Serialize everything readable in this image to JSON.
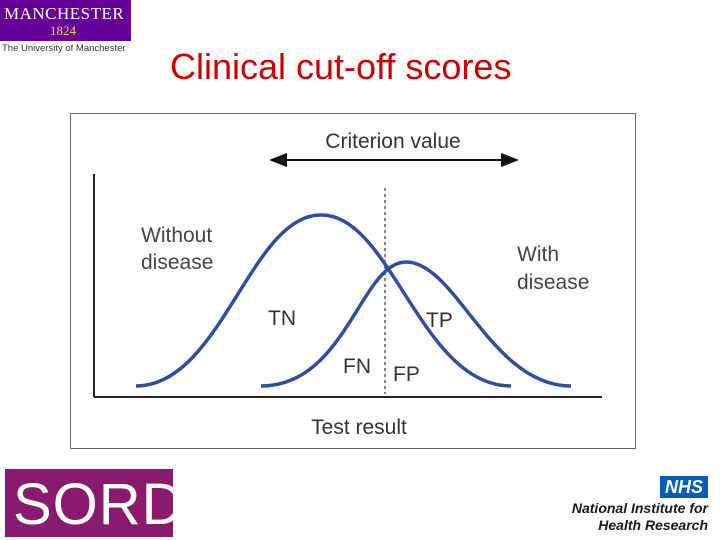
{
  "header": {
    "title": "Clinical cut-off scores",
    "logo_manchester": {
      "name": "MANCHESTER",
      "year": "1824",
      "subtitle": "The University of Manchester",
      "color": "#660099"
    }
  },
  "diagram": {
    "criterion_label": "Criterion value",
    "x_axis_label": "Test result",
    "without_disease": [
      "Without",
      "disease"
    ],
    "with_disease": [
      "With",
      "disease"
    ],
    "regions": {
      "tn": "TN",
      "tp": "TP",
      "fn": "FN",
      "fp": "FP"
    },
    "curve_color": "#2f4f9e"
  },
  "footer": {
    "sord_logo": {
      "text": "SORD",
      "color": "#8a1a6e"
    },
    "nhs_logo": {
      "badge": "NHS",
      "line1": "National Institute for",
      "line2": "Health Research",
      "color": "#005eb8"
    }
  }
}
